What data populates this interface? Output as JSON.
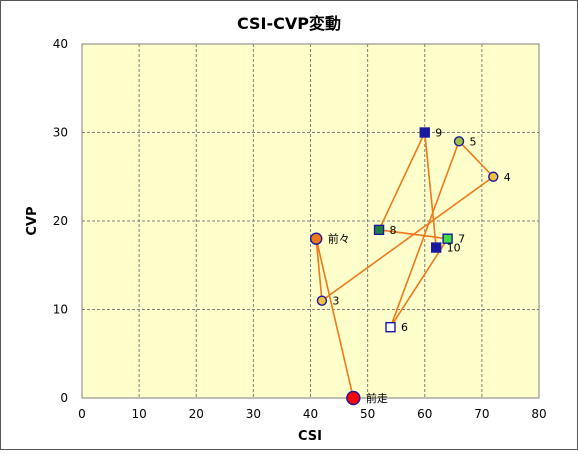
{
  "chart_data": {
    "type": "scatter",
    "title": "CSI-CVP変動",
    "xlabel": "CSI",
    "ylabel": "CVP",
    "xlim": [
      0,
      80
    ],
    "ylim": [
      0,
      40
    ],
    "xticks": [
      0,
      10,
      20,
      30,
      40,
      50,
      60,
      70,
      80
    ],
    "yticks": [
      0,
      10,
      20,
      30,
      40
    ],
    "grid": true,
    "legend": "none",
    "colors": {
      "plot_bg": "#ffffcc",
      "line": "#f07818",
      "grid": "#7f7f7f",
      "frame": "#7f7f7f"
    },
    "points": [
      {
        "label": "前走",
        "x": 47.5,
        "y": 0,
        "marker": "circle",
        "size": "large",
        "fill": "#ff0000",
        "stroke": "#1a1aa0"
      },
      {
        "label": "前々",
        "x": 41,
        "y": 18,
        "marker": "circle",
        "size": "medium",
        "fill": "#f07818",
        "stroke": "#1a1aa0"
      },
      {
        "label": "3",
        "x": 42,
        "y": 11,
        "marker": "circle",
        "size": "small",
        "fill": "#f0c040",
        "stroke": "#1a1aa0"
      },
      {
        "label": "4",
        "x": 72,
        "y": 25,
        "marker": "circle",
        "size": "small",
        "fill": "#f0c040",
        "stroke": "#1a1aa0"
      },
      {
        "label": "5",
        "x": 66,
        "y": 29,
        "marker": "circle",
        "size": "small",
        "fill": "#a0c040",
        "stroke": "#1a1aa0"
      },
      {
        "label": "6",
        "x": 54,
        "y": 8,
        "marker": "square",
        "size": "small",
        "fill": "#ffffff",
        "stroke": "#1a1aa0"
      },
      {
        "label": "7",
        "x": 64,
        "y": 18,
        "marker": "square",
        "size": "small",
        "fill": "#40e040",
        "stroke": "#1a1aa0"
      },
      {
        "label": "8",
        "x": 52,
        "y": 19,
        "marker": "square",
        "size": "small",
        "fill": "#208040",
        "stroke": "#1a1aa0"
      },
      {
        "label": "9",
        "x": 60,
        "y": 30,
        "marker": "square",
        "size": "small",
        "fill": "#1a1aa0",
        "stroke": "#1a1aa0"
      },
      {
        "label": "10",
        "x": 62,
        "y": 17,
        "marker": "square",
        "size": "small",
        "fill": "#1a1aa0",
        "stroke": "#1a1aa0"
      }
    ]
  }
}
